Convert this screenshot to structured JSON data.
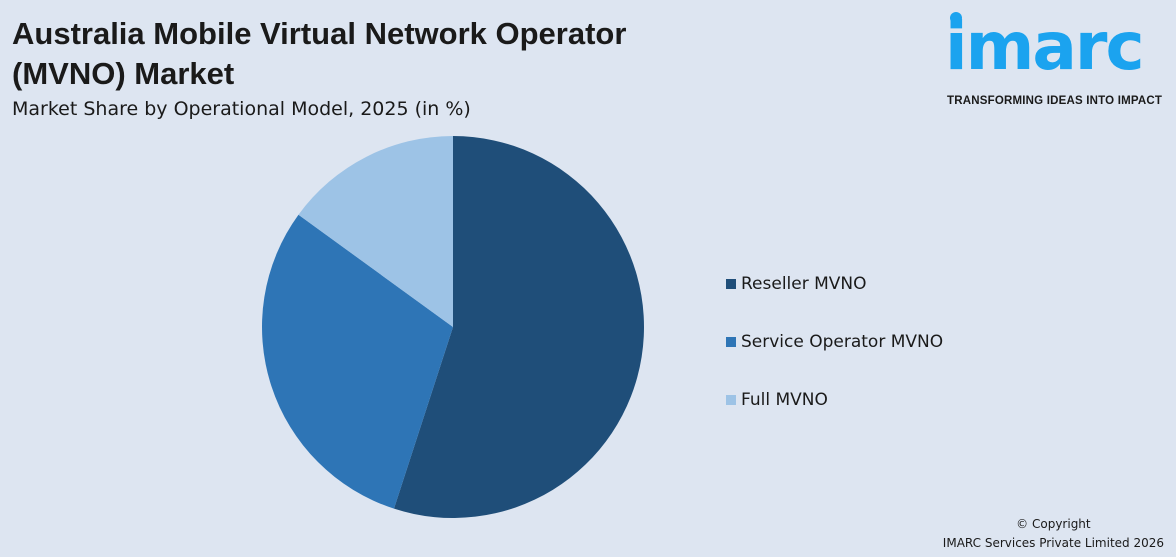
{
  "header": {
    "title": "Australia Mobile Virtual Network Operator (MVNO) Market",
    "subtitle": "Market Share by Operational Model, 2025 (in %)"
  },
  "logo": {
    "brand": "imarc",
    "tagline": "TRANSFORMING IDEAS INTO IMPACT",
    "color": "#1ba3ef"
  },
  "chart_data": {
    "type": "pie",
    "title": "Australia Mobile Virtual Network Operator (MVNO) Market",
    "subtitle": "Market Share by Operational Model, 2025 (in %)",
    "categories": [
      "Reseller MVNO",
      "Service Operator MVNO",
      "Full MVNO"
    ],
    "values": [
      55,
      30,
      15
    ],
    "colors": [
      "#1f4e79",
      "#2e75b6",
      "#9dc3e6"
    ],
    "legend_position": "right",
    "start_angle_deg": 0,
    "direction": "clockwise"
  },
  "footer": {
    "copyright": "© Copyright",
    "company": "IMARC Services Private Limited 2026"
  }
}
